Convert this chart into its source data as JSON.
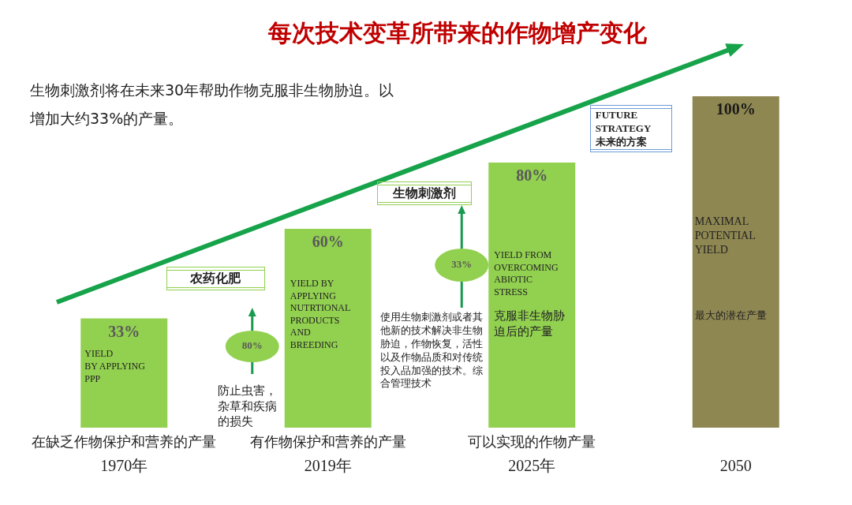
{
  "chart_data": {
    "type": "bar",
    "title": "每次技术变革所带来的作物增产变化",
    "subtitle": "生物刺激剂将在未来30年帮助作物克服非生物胁迫。以增加大约33%的产量。",
    "categories": [
      "1970年",
      "2019年",
      "2025年",
      "2050"
    ],
    "values": [
      33,
      60,
      80,
      100
    ],
    "colors": [
      "#92d050",
      "#92d050",
      "#92d050",
      "#8f8751"
    ],
    "value_labels": [
      "33%",
      "60%",
      "80%",
      "100%"
    ],
    "annotations": [
      "YIELD\nBY APPLYING\nPPP",
      "YIELD BY\nAPPLYING\nNUTRTIONAL\nPRODUCTS\nAND\nBREEDING",
      "YIELD FROM\nOVERCOMING\nABIOTIC\nSTRESS",
      "克服非生物胁迫后的产量",
      "MAXIMAL\nPOTENTIAL\nYIELD",
      "最大的潜在产量",
      "防止虫害，杂草和疾病的损失",
      "使用生物刺激剂或者其他新的技术解决非生物胁迫，作物恢复，活性以及作物品质和对传统投入品加强的技术。综合管理技术",
      "农药化肥",
      "生物刺激剂",
      "80%",
      "33%",
      "FUTURE\nSTRATEGY\n未来的方案",
      "在缺乏作物保护和营养的产量",
      "有作物保护和营养的产量",
      "可以实现的作物产量"
    ]
  }
}
